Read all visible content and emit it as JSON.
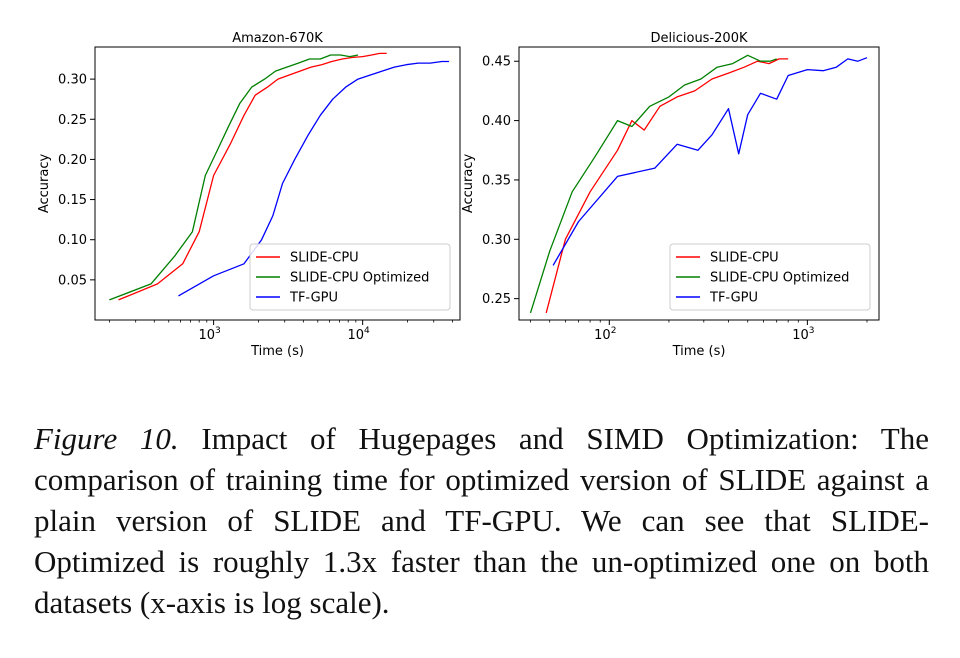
{
  "chart_data": [
    {
      "type": "line",
      "title": "Amazon-670K",
      "xlabel": "Time (s)",
      "ylabel": "Accuracy",
      "x_scale": "log",
      "xlim": [
        160,
        45000
      ],
      "ylim": [
        0.0,
        0.34
      ],
      "x_ticks": [
        {
          "value": 1000,
          "base": "10",
          "exp": "3"
        },
        {
          "value": 10000,
          "base": "10",
          "exp": "4"
        }
      ],
      "y_ticks": [
        {
          "value": 0.05,
          "label": "0.05"
        },
        {
          "value": 0.1,
          "label": "0.10"
        },
        {
          "value": 0.15,
          "label": "0.15"
        },
        {
          "value": 0.2,
          "label": "0.20"
        },
        {
          "value": 0.25,
          "label": "0.25"
        },
        {
          "value": 0.3,
          "label": "0.30"
        }
      ],
      "legend": "lower-right",
      "series": [
        {
          "name": "SLIDE-CPU",
          "color": "#ff0000",
          "x": [
            230,
            420,
            620,
            800,
            1000,
            1300,
            1600,
            1900,
            2300,
            2700,
            3200,
            3800,
            4500,
            5300,
            6200,
            7300,
            8600,
            10000,
            11500,
            13000,
            14500
          ],
          "y": [
            0.025,
            0.045,
            0.07,
            0.11,
            0.18,
            0.22,
            0.255,
            0.28,
            0.29,
            0.3,
            0.305,
            0.31,
            0.315,
            0.318,
            0.322,
            0.325,
            0.327,
            0.328,
            0.33,
            0.332,
            0.332
          ]
        },
        {
          "name": "SLIDE-CPU Optimized",
          "color": "#008000",
          "x": [
            200,
            380,
            550,
            720,
            880,
            1050,
            1250,
            1500,
            1800,
            2200,
            2600,
            3100,
            3700,
            4400,
            5200,
            6100,
            7100,
            8200,
            9300
          ],
          "y": [
            0.025,
            0.045,
            0.08,
            0.11,
            0.18,
            0.21,
            0.24,
            0.27,
            0.29,
            0.3,
            0.31,
            0.315,
            0.32,
            0.325,
            0.325,
            0.33,
            0.33,
            0.328,
            0.33
          ]
        },
        {
          "name": "TF-GPU",
          "color": "#0000ff",
          "x": [
            580,
            1000,
            1600,
            2100,
            2500,
            2900,
            3500,
            4300,
            5200,
            6300,
            7700,
            9300,
            11200,
            13500,
            16300,
            19600,
            23600,
            28400,
            34000,
            38000
          ],
          "y": [
            0.03,
            0.055,
            0.07,
            0.1,
            0.13,
            0.17,
            0.2,
            0.23,
            0.255,
            0.275,
            0.29,
            0.3,
            0.305,
            0.31,
            0.315,
            0.318,
            0.32,
            0.32,
            0.322,
            0.322
          ]
        }
      ]
    },
    {
      "type": "line",
      "title": "Delicious-200K",
      "xlabel": "Time (s)",
      "ylabel": "Accuracy",
      "x_scale": "log",
      "xlim": [
        35,
        2300
      ],
      "ylim": [
        0.232,
        0.462
      ],
      "x_ticks": [
        {
          "value": 100,
          "base": "10",
          "exp": "2"
        },
        {
          "value": 1000,
          "base": "10",
          "exp": "3"
        }
      ],
      "y_ticks": [
        {
          "value": 0.25,
          "label": "0.25"
        },
        {
          "value": 0.3,
          "label": "0.30"
        },
        {
          "value": 0.35,
          "label": "0.35"
        },
        {
          "value": 0.4,
          "label": "0.40"
        },
        {
          "value": 0.45,
          "label": "0.45"
        }
      ],
      "legend": "lower-right",
      "series": [
        {
          "name": "SLIDE-CPU",
          "color": "#ff0000",
          "x": [
            48,
            60,
            80,
            110,
            130,
            150,
            180,
            220,
            270,
            330,
            400,
            480,
            560,
            640,
            720,
            800
          ],
          "y": [
            0.238,
            0.3,
            0.34,
            0.375,
            0.4,
            0.392,
            0.412,
            0.42,
            0.425,
            0.435,
            0.44,
            0.445,
            0.45,
            0.448,
            0.452,
            0.452
          ]
        },
        {
          "name": "SLIDE-CPU Optimized",
          "color": "#008000",
          "x": [
            40,
            50,
            65,
            85,
            110,
            130,
            160,
            200,
            240,
            290,
            350,
            420,
            500,
            580,
            650,
            700
          ],
          "y": [
            0.238,
            0.29,
            0.34,
            0.37,
            0.4,
            0.395,
            0.412,
            0.42,
            0.43,
            0.435,
            0.445,
            0.448,
            0.455,
            0.45,
            0.45,
            0.452
          ]
        },
        {
          "name": "TF-GPU",
          "color": "#0000ff",
          "x": [
            52,
            70,
            110,
            170,
            220,
            280,
            330,
            400,
            450,
            500,
            580,
            700,
            800,
            1000,
            1200,
            1400,
            1600,
            1800,
            2000
          ],
          "y": [
            0.278,
            0.315,
            0.353,
            0.36,
            0.38,
            0.375,
            0.388,
            0.41,
            0.372,
            0.405,
            0.423,
            0.418,
            0.438,
            0.443,
            0.442,
            0.445,
            0.452,
            0.45,
            0.453
          ]
        }
      ]
    }
  ],
  "caption": {
    "figure_label": "Figure 10.",
    "text": "Impact of Hugepages and SIMD Optimization: The comparison of training time for optimized version of SLIDE against a plain version of SLIDE and TF-GPU. We can see that SLIDE-Optimized is roughly 1.3x faster than the un-optimized one on both datasets (x-axis is log scale)."
  }
}
